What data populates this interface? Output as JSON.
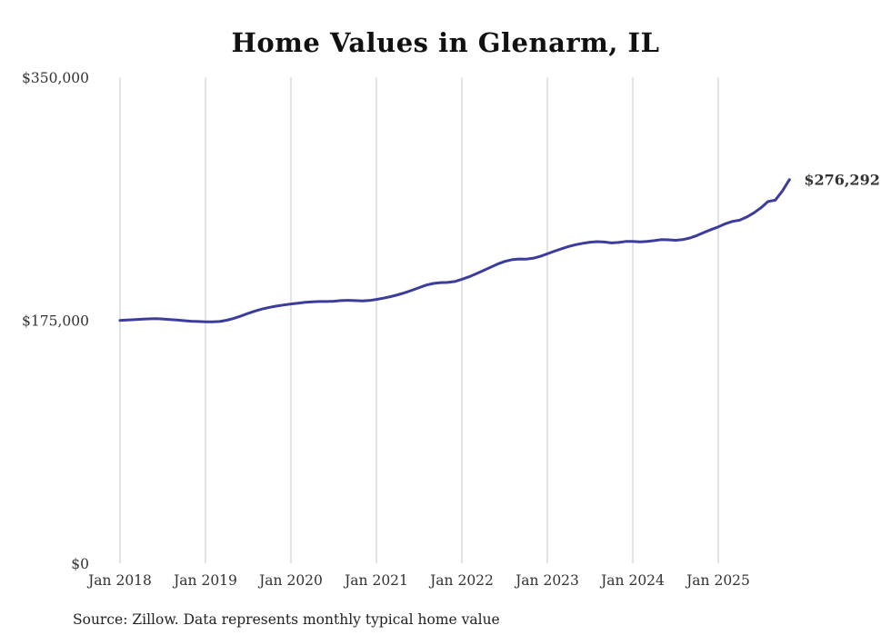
{
  "chart_data": {
    "type": "line",
    "title": "Home Values in Glenarm, IL",
    "ylabel": "",
    "xlabel": "",
    "ylim": [
      0,
      350000
    ],
    "grid": "vertical-only",
    "legend": "none",
    "y_ticks": [
      {
        "value": 0,
        "label": "$0"
      },
      {
        "value": 175000,
        "label": "$175,000"
      },
      {
        "value": 350000,
        "label": "$350,000"
      }
    ],
    "x_tick_labels": [
      "Jan 2018",
      "Jan 2019",
      "Jan 2020",
      "Jan 2021",
      "Jan 2022",
      "Jan 2023",
      "Jan 2024",
      "Jan 2025"
    ],
    "end_label": "$276,292",
    "final_value": 276292,
    "series_name": "Typical home value",
    "months": [
      "2018-01",
      "2018-02",
      "2018-03",
      "2018-04",
      "2018-05",
      "2018-06",
      "2018-07",
      "2018-08",
      "2018-09",
      "2018-10",
      "2018-11",
      "2018-12",
      "2019-01",
      "2019-02",
      "2019-03",
      "2019-04",
      "2019-05",
      "2019-06",
      "2019-07",
      "2019-08",
      "2019-09",
      "2019-10",
      "2019-11",
      "2019-12",
      "2020-01",
      "2020-02",
      "2020-03",
      "2020-04",
      "2020-05",
      "2020-06",
      "2020-07",
      "2020-08",
      "2020-09",
      "2020-10",
      "2020-11",
      "2020-12",
      "2021-01",
      "2021-02",
      "2021-03",
      "2021-04",
      "2021-05",
      "2021-06",
      "2021-07",
      "2021-08",
      "2021-09",
      "2021-10",
      "2021-11",
      "2021-12",
      "2022-01",
      "2022-02",
      "2022-03",
      "2022-04",
      "2022-05",
      "2022-06",
      "2022-07",
      "2022-08",
      "2022-09",
      "2022-10",
      "2022-11",
      "2022-12",
      "2023-01",
      "2023-02",
      "2023-03",
      "2023-04",
      "2023-05",
      "2023-06",
      "2023-07",
      "2023-08",
      "2023-09",
      "2023-10",
      "2023-11",
      "2023-12",
      "2024-01",
      "2024-02",
      "2024-03",
      "2024-04",
      "2024-05",
      "2024-06",
      "2024-07",
      "2024-08",
      "2024-09",
      "2024-10",
      "2024-11",
      "2024-12",
      "2025-01",
      "2025-02",
      "2025-03",
      "2025-04",
      "2025-05",
      "2025-06",
      "2025-07",
      "2025-08",
      "2025-09",
      "2025-10",
      "2025-11"
    ],
    "values": [
      174900,
      175100,
      175400,
      175700,
      176000,
      176100,
      175900,
      175500,
      175100,
      174700,
      174300,
      174100,
      173900,
      173800,
      174100,
      175000,
      176400,
      178100,
      180000,
      181700,
      183100,
      184300,
      185200,
      186000,
      186700,
      187300,
      187900,
      188300,
      188500,
      188500,
      188700,
      189100,
      189300,
      189100,
      188900,
      189200,
      190000,
      190900,
      192000,
      193300,
      194800,
      196600,
      198500,
      200300,
      201500,
      202100,
      202200,
      202900,
      204500,
      206300,
      208400,
      210700,
      213100,
      215400,
      217300,
      218600,
      219100,
      219000,
      219600,
      221000,
      222800,
      224700,
      226500,
      228100,
      229400,
      230400,
      231200,
      231600,
      231300,
      230700,
      231000,
      231700,
      231800,
      231400,
      231700,
      232300,
      233000,
      232900,
      232600,
      233000,
      234200,
      236000,
      238200,
      240300,
      242200,
      244500,
      246200,
      247000,
      249300,
      252300,
      256000,
      260500,
      261500,
      268000,
      276292
    ]
  },
  "colors": {
    "line": "#3c3c9e",
    "end_label": "#3c3c9e",
    "grid": "#c9c9c9",
    "tick_text": "#333333",
    "title": "#111111"
  },
  "source_note": "Source: Zillow. Data represents monthly typical home value"
}
